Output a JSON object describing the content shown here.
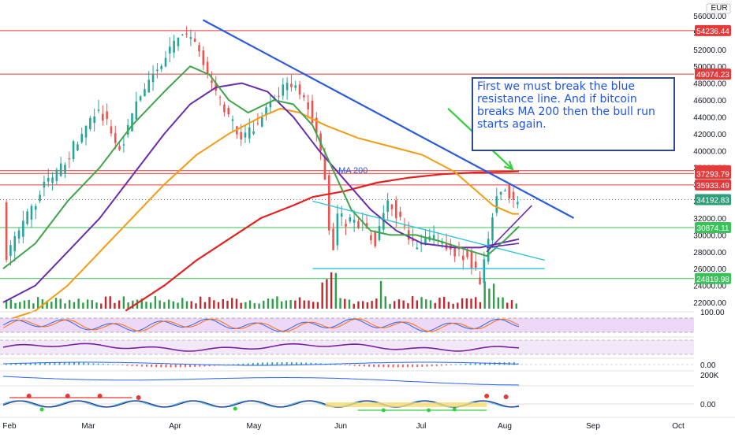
{
  "currency": "EUR",
  "annotation_text": "First we must break the blue resistance line.  And if bitcoin breaks MA 200 then the bull run starts again.",
  "ma_label": "MA 200",
  "colors": {
    "resistance": "#2a5ae0",
    "ma200": "#e32222",
    "ma100": "#f39c12",
    "ma50": "#6a2cae",
    "ma20": "#3fa54a",
    "bull": "#26a69a",
    "bear": "#ef5350",
    "volume_bull": "#2e9e4a",
    "volume_bear": "#c0282d",
    "h_red": "#e43a3a",
    "h_green": "#3bc15a",
    "triangle": "#27c4d6",
    "osc_band": "#eed8f8"
  },
  "chart_data": {
    "type": "candlestick",
    "x_ticks": [
      "Feb",
      "Mar",
      "Apr",
      "May",
      "Jun",
      "Jul",
      "Aug",
      "Sep",
      "Oct"
    ],
    "y_ticks": [
      "56000.00",
      "54000.00",
      "52000.00",
      "50000.00",
      "48000.00",
      "46000.00",
      "44000.00",
      "42000.00",
      "40000.00",
      "38000.00",
      "36000.00",
      "34000.00",
      "32000.00",
      "30000.00",
      "28000.00",
      "26000.00",
      "24000.00",
      "22000.00"
    ],
    "ylim": [
      21000,
      57000
    ],
    "price_levels": [
      {
        "label": "54236.44",
        "value": 54236.44,
        "kind": "red"
      },
      {
        "label": "49074.23",
        "value": 49074.23,
        "kind": "red"
      },
      {
        "label": "37627.02",
        "value": 37627.02,
        "kind": "red"
      },
      {
        "label": "37293.79",
        "value": 37293.79,
        "kind": "red"
      },
      {
        "label": "35933.49",
        "value": 35933.49,
        "kind": "red"
      },
      {
        "label": "34192.83",
        "value": 34192.83,
        "kind": "last"
      },
      {
        "label": "30874.11",
        "value": 30874.11,
        "kind": "green"
      },
      {
        "label": "24819.98",
        "value": 24819.98,
        "kind": "green"
      }
    ],
    "close_path": [
      [
        0,
        27000
      ],
      [
        6,
        31000
      ],
      [
        12,
        35500
      ],
      [
        18,
        38000
      ],
      [
        24,
        42000
      ],
      [
        30,
        45000
      ],
      [
        36,
        40000
      ],
      [
        42,
        46000
      ],
      [
        48,
        50000
      ],
      [
        54,
        53000
      ],
      [
        58,
        54000
      ],
      [
        62,
        50000
      ],
      [
        66,
        47000
      ],
      [
        70,
        44000
      ],
      [
        74,
        41000
      ],
      [
        80,
        44000
      ],
      [
        86,
        47000
      ],
      [
        90,
        48000
      ],
      [
        94,
        46000
      ],
      [
        98,
        41000
      ],
      [
        100,
        36000
      ],
      [
        102,
        27000
      ],
      [
        104,
        33000
      ],
      [
        106,
        31000
      ],
      [
        108,
        32000
      ],
      [
        112,
        31000
      ],
      [
        116,
        29000
      ],
      [
        118,
        33000
      ],
      [
        120,
        34000
      ],
      [
        124,
        31000
      ],
      [
        128,
        28000
      ],
      [
        132,
        30000
      ],
      [
        136,
        29000
      ],
      [
        140,
        28000
      ],
      [
        144,
        27500
      ],
      [
        146,
        26000
      ],
      [
        148,
        24500
      ],
      [
        150,
        28000
      ],
      [
        152,
        33000
      ],
      [
        154,
        35500
      ],
      [
        156,
        36000
      ],
      [
        158,
        33500
      ],
      [
        160,
        34200
      ]
    ],
    "ma20": [
      [
        0,
        26000
      ],
      [
        10,
        29000
      ],
      [
        20,
        34000
      ],
      [
        30,
        38000
      ],
      [
        40,
        43000
      ],
      [
        50,
        47000
      ],
      [
        58,
        50000
      ],
      [
        64,
        49000
      ],
      [
        70,
        46000
      ],
      [
        76,
        44500
      ],
      [
        84,
        46000
      ],
      [
        90,
        45500
      ],
      [
        96,
        43000
      ],
      [
        102,
        38000
      ],
      [
        108,
        33000
      ],
      [
        114,
        30500
      ],
      [
        120,
        30000
      ],
      [
        128,
        30000
      ],
      [
        136,
        29200
      ],
      [
        144,
        28200
      ],
      [
        150,
        27500
      ],
      [
        156,
        29500
      ],
      [
        160,
        31000
      ]
    ],
    "ma50": [
      [
        0,
        22000
      ],
      [
        10,
        24000
      ],
      [
        20,
        28000
      ],
      [
        30,
        32000
      ],
      [
        40,
        37000
      ],
      [
        50,
        42000
      ],
      [
        58,
        45500
      ],
      [
        66,
        47500
      ],
      [
        74,
        48000
      ],
      [
        82,
        47000
      ],
      [
        90,
        44000
      ],
      [
        98,
        40000
      ],
      [
        106,
        36500
      ],
      [
        114,
        33000
      ],
      [
        122,
        30500
      ],
      [
        130,
        29000
      ],
      [
        140,
        28500
      ],
      [
        148,
        28500
      ],
      [
        154,
        29000
      ],
      [
        160,
        29500
      ]
    ],
    "ma100": [
      [
        2,
        20000
      ],
      [
        10,
        21000
      ],
      [
        20,
        24000
      ],
      [
        30,
        28000
      ],
      [
        40,
        32000
      ],
      [
        50,
        36000
      ],
      [
        60,
        39500
      ],
      [
        70,
        42000
      ],
      [
        80,
        44000
      ],
      [
        86,
        45000
      ],
      [
        92,
        44500
      ],
      [
        100,
        43000
      ],
      [
        110,
        41500
      ],
      [
        120,
        40500
      ],
      [
        130,
        39500
      ],
      [
        140,
        37500
      ],
      [
        146,
        35500
      ],
      [
        152,
        33500
      ],
      [
        158,
        32500
      ],
      [
        160,
        32500
      ]
    ],
    "ma200": [
      [
        38,
        21000
      ],
      [
        50,
        24000
      ],
      [
        60,
        27000
      ],
      [
        70,
        29500
      ],
      [
        80,
        32000
      ],
      [
        90,
        33500
      ],
      [
        96,
        34500
      ],
      [
        106,
        35200
      ],
      [
        116,
        36200
      ],
      [
        126,
        36800
      ],
      [
        136,
        37200
      ],
      [
        146,
        37400
      ],
      [
        156,
        37500
      ],
      [
        160,
        37550
      ]
    ],
    "resistance_line": [
      [
        62,
        55500
      ],
      [
        177,
        32000
      ]
    ],
    "triangle_upper": [
      [
        96,
        34000
      ],
      [
        168,
        27000
      ]
    ],
    "triangle_lower": [
      [
        96,
        26000
      ],
      [
        168,
        26000
      ]
    ],
    "channel_lines": [
      [
        [
          150,
          28000
        ],
        [
          164,
          33500
        ]
      ],
      [
        [
          150,
          28500
        ],
        [
          160,
          29000
        ]
      ]
    ],
    "arrow": {
      "from": [
        138,
        45000
      ],
      "to": [
        158,
        37800
      ]
    }
  }
}
